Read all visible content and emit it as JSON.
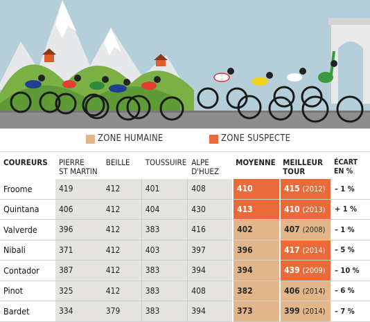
{
  "legend": {
    "human": {
      "label": "ZONE HUMAINE",
      "color": "#e3b689"
    },
    "suspect": {
      "label": "ZONE SUSPECTE",
      "color": "#ea6a3a"
    }
  },
  "table": {
    "headers": {
      "rider": "COUREURS",
      "climb1": [
        "PIERRE",
        "ST MARTIN"
      ],
      "climb2": "BEILLE",
      "climb3": "TOUSSUIRE",
      "climb4": [
        "ALPE",
        "D'HUEZ"
      ],
      "average": "MOYENNE",
      "best": [
        "MEILLEUR",
        "TOUR"
      ],
      "gap": [
        "ÉCART",
        "EN %"
      ]
    },
    "rows": [
      {
        "name": "Froome",
        "c1": "419",
        "c2": "412",
        "c3": "401",
        "c4": "408",
        "avg": "410",
        "avg_zone": "suspect",
        "best": "415",
        "best_year": "(2012)",
        "best_zone": "suspect",
        "gap": "– 1 %"
      },
      {
        "name": "Quintana",
        "c1": "406",
        "c2": "412",
        "c3": "404",
        "c4": "430",
        "avg": "413",
        "avg_zone": "suspect",
        "best": "410",
        "best_year": "(2013)",
        "best_zone": "suspect",
        "gap": "+ 1 %"
      },
      {
        "name": "Valverde",
        "c1": "396",
        "c2": "412",
        "c3": "383",
        "c4": "416",
        "avg": "402",
        "avg_zone": "human",
        "best": "407",
        "best_year": "(2008)",
        "best_zone": "human",
        "gap": "– 1 %"
      },
      {
        "name": "Nibali",
        "c1": "371",
        "c2": "412",
        "c3": "403",
        "c4": "397",
        "avg": "396",
        "avg_zone": "human",
        "best": "417",
        "best_year": "(2014)",
        "best_zone": "suspect",
        "gap": "– 5 %"
      },
      {
        "name": "Contador",
        "c1": "387",
        "c2": "412",
        "c3": "383",
        "c4": "394",
        "avg": "394",
        "avg_zone": "human",
        "best": "439",
        "best_year": "(2009)",
        "best_zone": "suspect",
        "gap": "– 10 %"
      },
      {
        "name": "Pinot",
        "c1": "325",
        "c2": "412",
        "c3": "383",
        "c4": "408",
        "avg": "382",
        "avg_zone": "human",
        "best": "406",
        "best_year": "(2014)",
        "best_zone": "human",
        "gap": "– 6 %"
      },
      {
        "name": "Bardet",
        "c1": "334",
        "c2": "379",
        "c3": "383",
        "c4": "394",
        "avg": "373",
        "avg_zone": "human",
        "best": "399",
        "best_year": "(2014)",
        "best_zone": "human",
        "gap": "– 7 %"
      }
    ]
  }
}
